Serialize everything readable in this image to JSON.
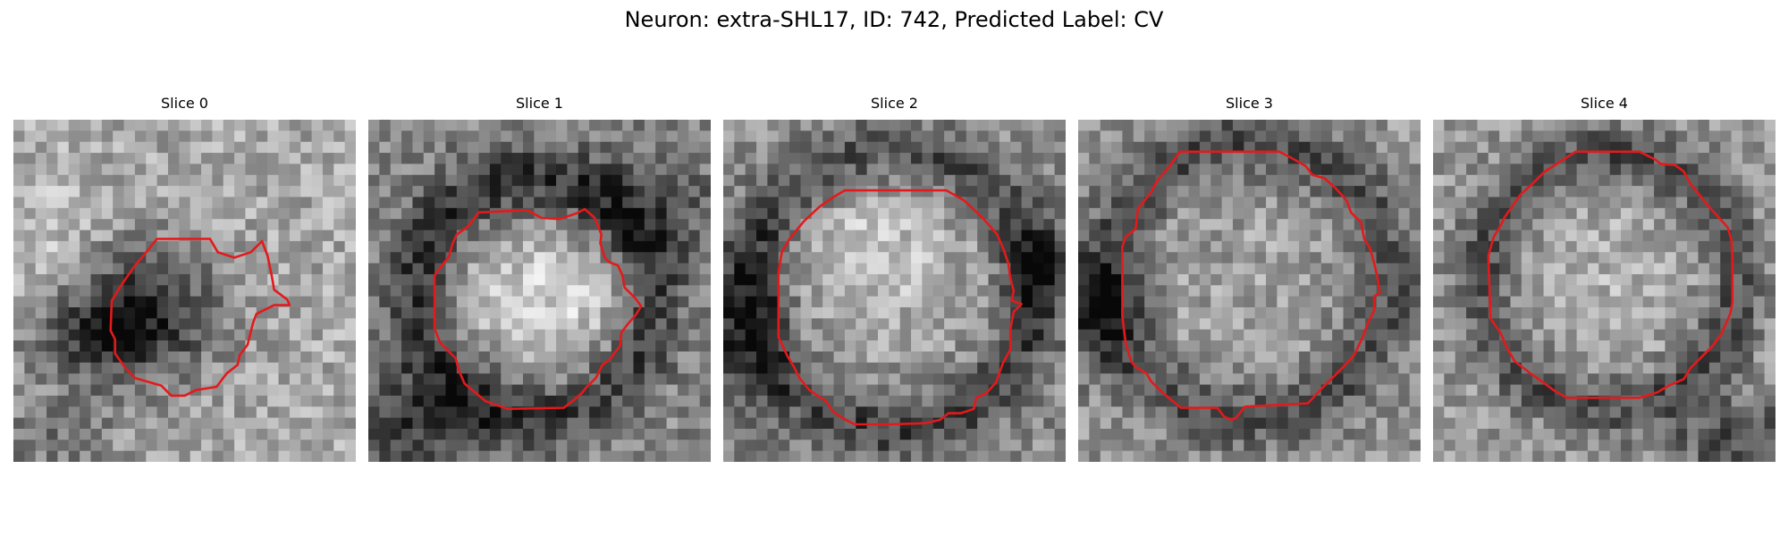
{
  "figure": {
    "title": "Neuron: extra-SHL17, ID: 742, Predicted Label: CV"
  },
  "panels": [
    {
      "title": "Slice 0"
    },
    {
      "title": "Slice 1"
    },
    {
      "title": "Slice 2"
    },
    {
      "title": "Slice 3"
    },
    {
      "title": "Slice 4"
    }
  ],
  "colors": {
    "contour": "#e31a1c",
    "background": "#ffffff"
  }
}
